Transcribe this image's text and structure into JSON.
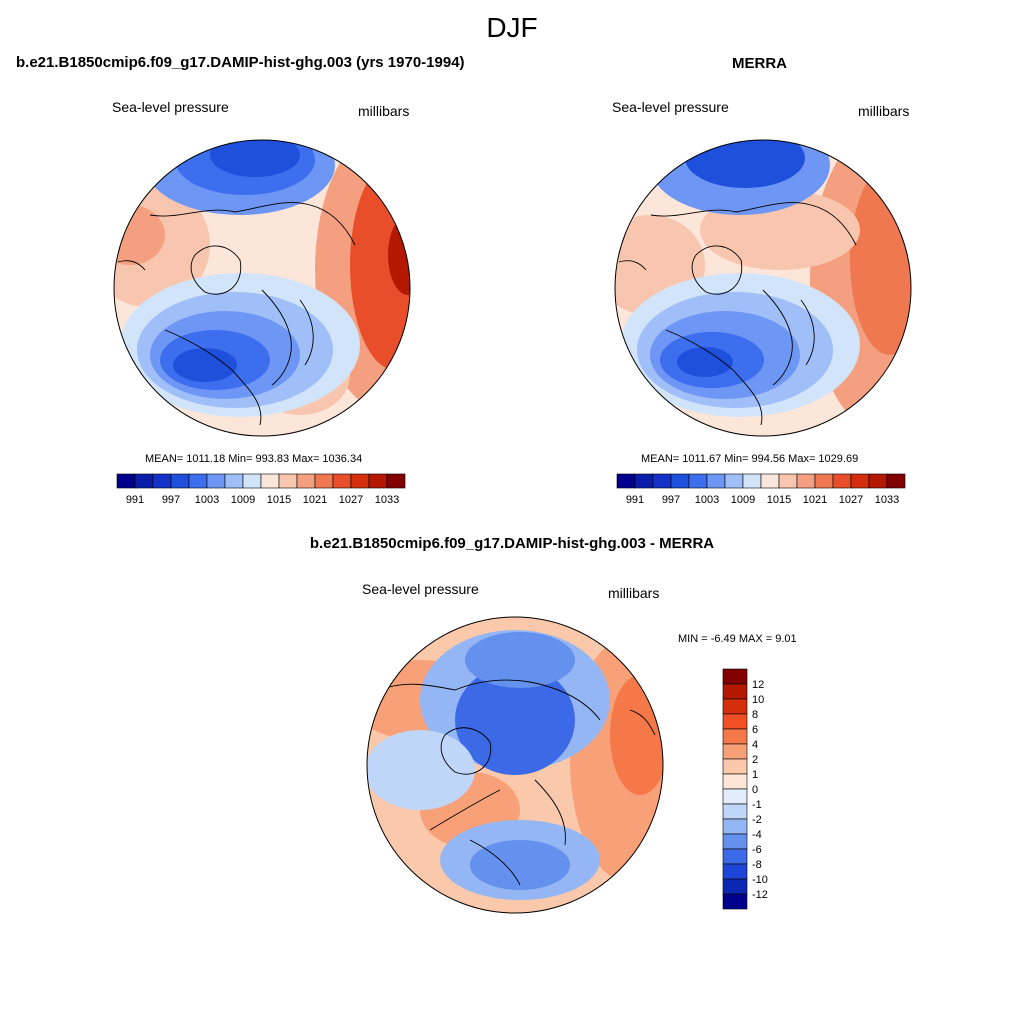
{
  "figure": {
    "title": "DJF"
  },
  "panels": [
    {
      "title": "b.e21.B1850cmip6.f09_g17.DAMIP-hist-ghg.003 (yrs 1970-1994)",
      "left_label": "Sea-level pressure",
      "right_label": "millibars",
      "stats": "MEAN= 1011.18  Min= 993.83  Max= 1036.34",
      "colorbar": {
        "labels": [
          "991",
          "997",
          "1003",
          "1009",
          "1015",
          "1021",
          "1027",
          "1033"
        ],
        "colors": [
          "#00008c",
          "#0a1eaa",
          "#1432c8",
          "#1e50dc",
          "#3c6eee",
          "#6e96f5",
          "#a0bef8",
          "#d2e4fa",
          "#fce6da",
          "#f8c6ae",
          "#f4a080",
          "#f07850",
          "#e84e2a",
          "#d42e0c",
          "#b41800",
          "#820000"
        ]
      }
    },
    {
      "title": "MERRA",
      "left_label": "Sea-level pressure",
      "right_label": "millibars",
      "stats": "MEAN= 1011.67  Min= 994.56  Max= 1029.69",
      "colorbar": {
        "labels": [
          "991",
          "997",
          "1003",
          "1009",
          "1015",
          "1021",
          "1027",
          "1033"
        ],
        "colors": [
          "#00008c",
          "#0a1eaa",
          "#1432c8",
          "#1e50dc",
          "#3c6eee",
          "#6e96f5",
          "#a0bef8",
          "#d2e4fa",
          "#fce6da",
          "#f8c6ae",
          "#f4a080",
          "#f07850",
          "#e84e2a",
          "#d42e0c",
          "#b41800",
          "#820000"
        ]
      }
    },
    {
      "title": "b.e21.B1850cmip6.f09_g17.DAMIP-hist-ghg.003 - MERRA",
      "left_label": "Sea-level pressure",
      "right_label": "millibars",
      "stats": "MIN =  -6.49 MAX =   9.01",
      "colorbar": {
        "labels": [
          "12",
          "10",
          "8",
          "6",
          "4",
          "2",
          "1",
          "0",
          "-1",
          "-2",
          "-4",
          "-6",
          "-8",
          "-10",
          "-12"
        ],
        "colors": [
          "#820000",
          "#b41800",
          "#d42e0c",
          "#f05024",
          "#f47848",
          "#f8a078",
          "#fac8aa",
          "#fde6d8",
          "#e2ecfa",
          "#c0d6f8",
          "#94b6f4",
          "#6490ee",
          "#3c6ae6",
          "#1e46d6",
          "#0a28b4",
          "#00008c"
        ]
      }
    }
  ]
}
